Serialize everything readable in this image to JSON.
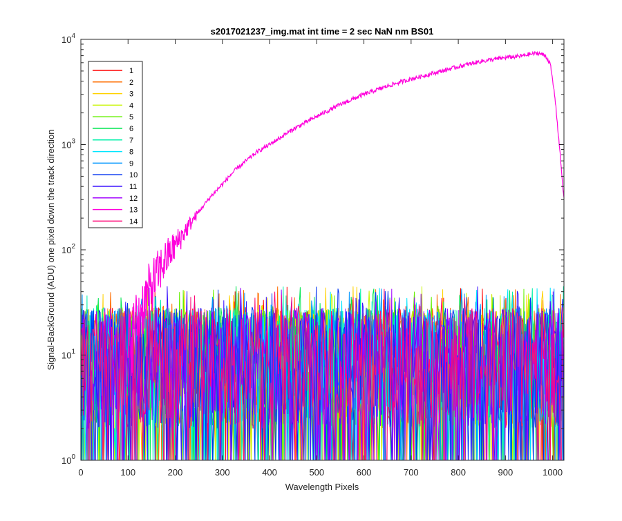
{
  "chart_data": {
    "type": "line",
    "title": "s2017021237_img.mat int time = 2 sec  NaN nm BS01",
    "xlabel": "Wavelength Pixels",
    "ylabel": "Signal-BackGround (ADU) one pixel down the track direction",
    "xlim": [
      0,
      1024
    ],
    "ylim": [
      1,
      10000
    ],
    "yscale": "log",
    "xticks": [
      0,
      100,
      200,
      300,
      400,
      500,
      600,
      700,
      800,
      900,
      1000
    ],
    "xtick_labels": [
      "0",
      "100",
      "200",
      "300",
      "400",
      "500",
      "600",
      "700",
      "800",
      "900",
      "1000"
    ],
    "yticks": [
      {
        "value": 1,
        "base": "10",
        "exp": "0"
      },
      {
        "value": 10,
        "base": "10",
        "exp": "1"
      },
      {
        "value": 100,
        "base": "10",
        "exp": "2"
      },
      {
        "value": 1000,
        "base": "10",
        "exp": "3"
      },
      {
        "value": 10000,
        "base": "10",
        "exp": "4"
      }
    ],
    "grid": false,
    "legend_position": "top-left",
    "noise_series": {
      "description_values": "series 1-14 except 13 fluctuate between about 1 and 45 ADU across the full pixel range",
      "min": 1,
      "max": 45
    },
    "series": [
      {
        "name": "1",
        "color": "#ff0000"
      },
      {
        "name": "2",
        "color": "#ff6e00"
      },
      {
        "name": "3",
        "color": "#ffd200"
      },
      {
        "name": "4",
        "color": "#c8f500"
      },
      {
        "name": "5",
        "color": "#64f000"
      },
      {
        "name": "6",
        "color": "#00e650"
      },
      {
        "name": "7",
        "color": "#00f0aa"
      },
      {
        "name": "8",
        "color": "#00e6ff"
      },
      {
        "name": "9",
        "color": "#0096ff"
      },
      {
        "name": "10",
        "color": "#0032f0"
      },
      {
        "name": "11",
        "color": "#3c14ff"
      },
      {
        "name": "12",
        "color": "#a000ff"
      },
      {
        "name": "13",
        "color": "#ff00dc",
        "x": [
          100,
          115,
          130,
          150,
          175,
          200,
          225,
          250,
          275,
          300,
          325,
          350,
          375,
          400,
          450,
          500,
          550,
          600,
          650,
          700,
          750,
          800,
          850,
          900,
          930,
          950,
          970,
          985,
          995,
          1005,
          1015,
          1024
        ],
        "values": [
          12,
          18,
          28,
          45,
          75,
          110,
          160,
          230,
          320,
          420,
          560,
          700,
          860,
          1000,
          1400,
          1850,
          2400,
          3000,
          3600,
          4200,
          4800,
          5500,
          6200,
          6700,
          6900,
          7200,
          7400,
          7000,
          5800,
          2800,
          900,
          300
        ]
      },
      {
        "name": "14",
        "color": "#ff0a78"
      }
    ]
  }
}
